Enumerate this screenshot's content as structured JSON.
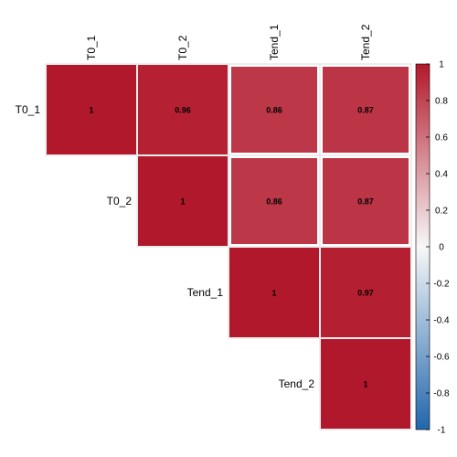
{
  "chart_data": {
    "type": "heatmap",
    "variables": [
      "T0_1",
      "T0_2",
      "Tend_1",
      "Tend_2"
    ],
    "layout": "upper-triangle",
    "matrix": [
      [
        1,
        0.96,
        0.86,
        0.87
      ],
      [
        0.96,
        1,
        0.86,
        0.87
      ],
      [
        0.86,
        0.86,
        1,
        0.97
      ],
      [
        0.87,
        0.87,
        0.97,
        1
      ]
    ],
    "value_labels": [
      [
        "1",
        "0.96",
        "0.86",
        "0.87"
      ],
      [
        "0.96",
        "1",
        "0.86",
        "0.87"
      ],
      [
        "0.86",
        "0.86",
        "1",
        "0.97"
      ],
      [
        "0.87",
        "0.87",
        "0.97",
        "1"
      ]
    ],
    "highlighted_cells": [
      [
        0,
        2
      ],
      [
        0,
        3
      ],
      [
        1,
        2
      ],
      [
        1,
        3
      ]
    ],
    "colorbar": {
      "range": [
        -1,
        1
      ],
      "ticks": [
        1,
        0.8,
        0.6,
        0.4,
        0.2,
        0,
        -0.2,
        -0.4,
        -0.6,
        -0.8,
        -1
      ],
      "tick_labels": [
        "1",
        "0.8",
        "0.6",
        "0.4",
        "0.2",
        "0",
        "-0.2",
        "-0.4",
        "-0.6",
        "-0.8",
        "-1"
      ],
      "position": "right"
    },
    "colors": {
      "negative": "#2166ac",
      "zero": "#f7f7f7",
      "positive": "#b2182b",
      "grid": "#dcdcdc",
      "highlight": "#ffffff"
    }
  }
}
